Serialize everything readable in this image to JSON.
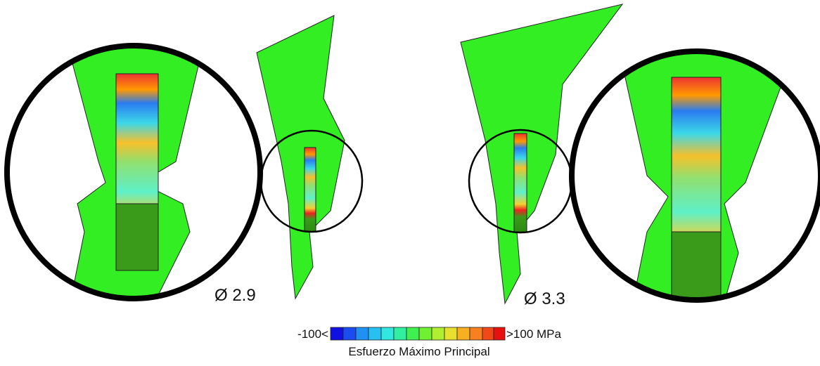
{
  "labels": {
    "left_diameter": "Ø 2.9",
    "right_diameter": "Ø 3.3"
  },
  "colorbar": {
    "min_label": "-100<",
    "max_label": ">100 MPa",
    "title": "Esfuerzo Máximo Principal"
  }
}
